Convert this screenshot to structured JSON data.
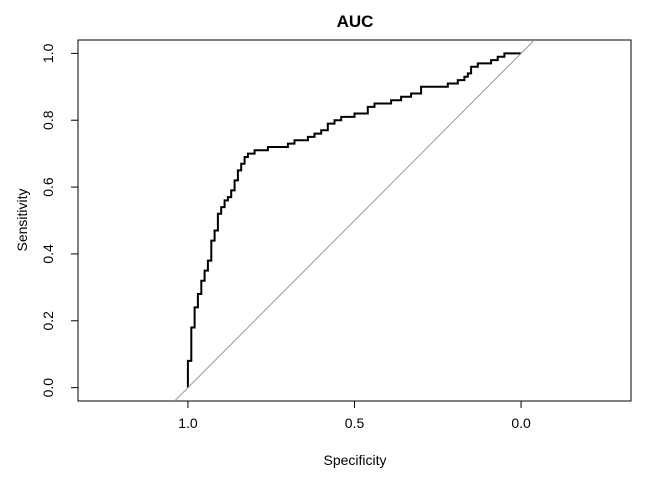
{
  "chart_data": {
    "type": "line",
    "title": "AUC",
    "xlabel": "Specificity",
    "ylabel": "Sensitivity",
    "x_reversed": true,
    "xlim": [
      1.33,
      -0.33
    ],
    "ylim": [
      -0.04,
      1.04
    ],
    "x_ticks": [
      1.0,
      0.5,
      0.0
    ],
    "x_tick_labels": [
      "1.0",
      "0.5",
      "0.0"
    ],
    "y_ticks": [
      0.0,
      0.2,
      0.4,
      0.6,
      0.8,
      1.0
    ],
    "y_tick_labels": [
      "0.0",
      "0.2",
      "0.4",
      "0.6",
      "0.8",
      "1.0"
    ],
    "grid": false,
    "series": [
      {
        "role": "roc-curve",
        "color": "#000000",
        "x": [
          1.0,
          1.0,
          0.99,
          0.99,
          0.98,
          0.98,
          0.97,
          0.97,
          0.96,
          0.96,
          0.95,
          0.95,
          0.94,
          0.94,
          0.93,
          0.93,
          0.92,
          0.92,
          0.91,
          0.91,
          0.9,
          0.9,
          0.89,
          0.89,
          0.88,
          0.88,
          0.87,
          0.87,
          0.86,
          0.86,
          0.85,
          0.85,
          0.84,
          0.84,
          0.83,
          0.83,
          0.82,
          0.82,
          0.8,
          0.8,
          0.78,
          0.78,
          0.76,
          0.76,
          0.7,
          0.7,
          0.68,
          0.68,
          0.64,
          0.64,
          0.62,
          0.62,
          0.6,
          0.6,
          0.58,
          0.58,
          0.56,
          0.56,
          0.54,
          0.54,
          0.5,
          0.5,
          0.46,
          0.46,
          0.44,
          0.44,
          0.39,
          0.39,
          0.36,
          0.36,
          0.33,
          0.33,
          0.3,
          0.3,
          0.22,
          0.22,
          0.19,
          0.19,
          0.17,
          0.17,
          0.16,
          0.16,
          0.15,
          0.15,
          0.13,
          0.13,
          0.09,
          0.09,
          0.07,
          0.07,
          0.05,
          0.05,
          0.03,
          0.03,
          0.0
        ],
        "y": [
          0.0,
          0.08,
          0.08,
          0.18,
          0.18,
          0.24,
          0.24,
          0.28,
          0.28,
          0.32,
          0.32,
          0.35,
          0.35,
          0.38,
          0.38,
          0.44,
          0.44,
          0.47,
          0.47,
          0.52,
          0.52,
          0.54,
          0.54,
          0.56,
          0.56,
          0.57,
          0.57,
          0.59,
          0.59,
          0.62,
          0.62,
          0.65,
          0.65,
          0.67,
          0.67,
          0.69,
          0.69,
          0.7,
          0.7,
          0.71,
          0.71,
          0.71,
          0.71,
          0.72,
          0.72,
          0.73,
          0.73,
          0.74,
          0.74,
          0.75,
          0.75,
          0.76,
          0.76,
          0.77,
          0.77,
          0.79,
          0.79,
          0.8,
          0.8,
          0.81,
          0.81,
          0.82,
          0.82,
          0.84,
          0.84,
          0.85,
          0.85,
          0.86,
          0.86,
          0.87,
          0.87,
          0.88,
          0.88,
          0.9,
          0.9,
          0.91,
          0.91,
          0.92,
          0.92,
          0.93,
          0.93,
          0.94,
          0.94,
          0.96,
          0.96,
          0.97,
          0.97,
          0.98,
          0.98,
          0.99,
          0.99,
          1.0,
          1.0,
          1.0,
          1.0
        ]
      },
      {
        "role": "reference-diagonal",
        "color": "#999999",
        "x": [
          1.04,
          -0.04
        ],
        "y": [
          -0.04,
          1.04
        ]
      }
    ]
  }
}
